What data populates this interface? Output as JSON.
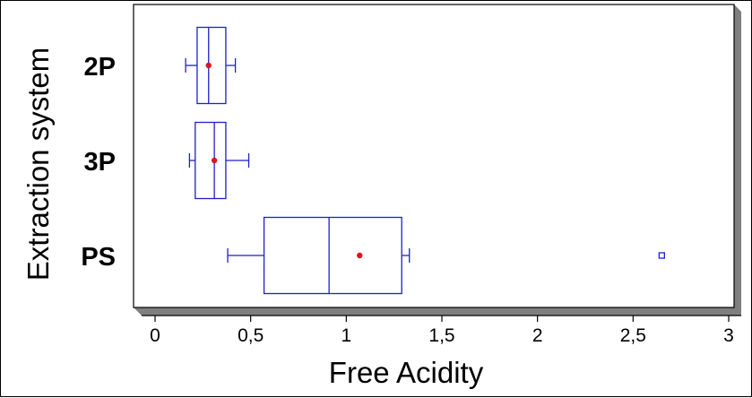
{
  "chart_data": {
    "type": "boxplot",
    "xlabel": "Free Acidity",
    "ylabel": "Extraction system",
    "xlim": [
      -0.1,
      3.1
    ],
    "x_ticks": [
      {
        "value": 0,
        "label": "0"
      },
      {
        "value": 0.5,
        "label": "0,5"
      },
      {
        "value": 1,
        "label": "1"
      },
      {
        "value": 1.5,
        "label": "1,5"
      },
      {
        "value": 2,
        "label": "2"
      },
      {
        "value": 2.5,
        "label": "2,5"
      },
      {
        "value": 3,
        "label": "3"
      }
    ],
    "categories": [
      "2P",
      "3P",
      "PS"
    ],
    "boxes": [
      {
        "category": "2P",
        "whisker_low": 0.16,
        "q1": 0.22,
        "median": 0.28,
        "q3": 0.37,
        "whisker_high": 0.42,
        "mean": 0.28,
        "outliers": []
      },
      {
        "category": "3P",
        "whisker_low": 0.18,
        "q1": 0.21,
        "median": 0.31,
        "q3": 0.37,
        "whisker_high": 0.49,
        "mean": 0.31,
        "outliers": []
      },
      {
        "category": "PS",
        "whisker_low": 0.38,
        "q1": 0.57,
        "median": 0.91,
        "q3": 1.29,
        "whisker_high": 1.33,
        "mean": 1.07,
        "outliers": [
          2.65
        ]
      }
    ],
    "colors": {
      "box": "#1f1fd0",
      "mean": "#e0141c",
      "panel": "#ffffff",
      "shadow": "#7f7f7f"
    },
    "grid": false,
    "orientation": "horizontal"
  }
}
